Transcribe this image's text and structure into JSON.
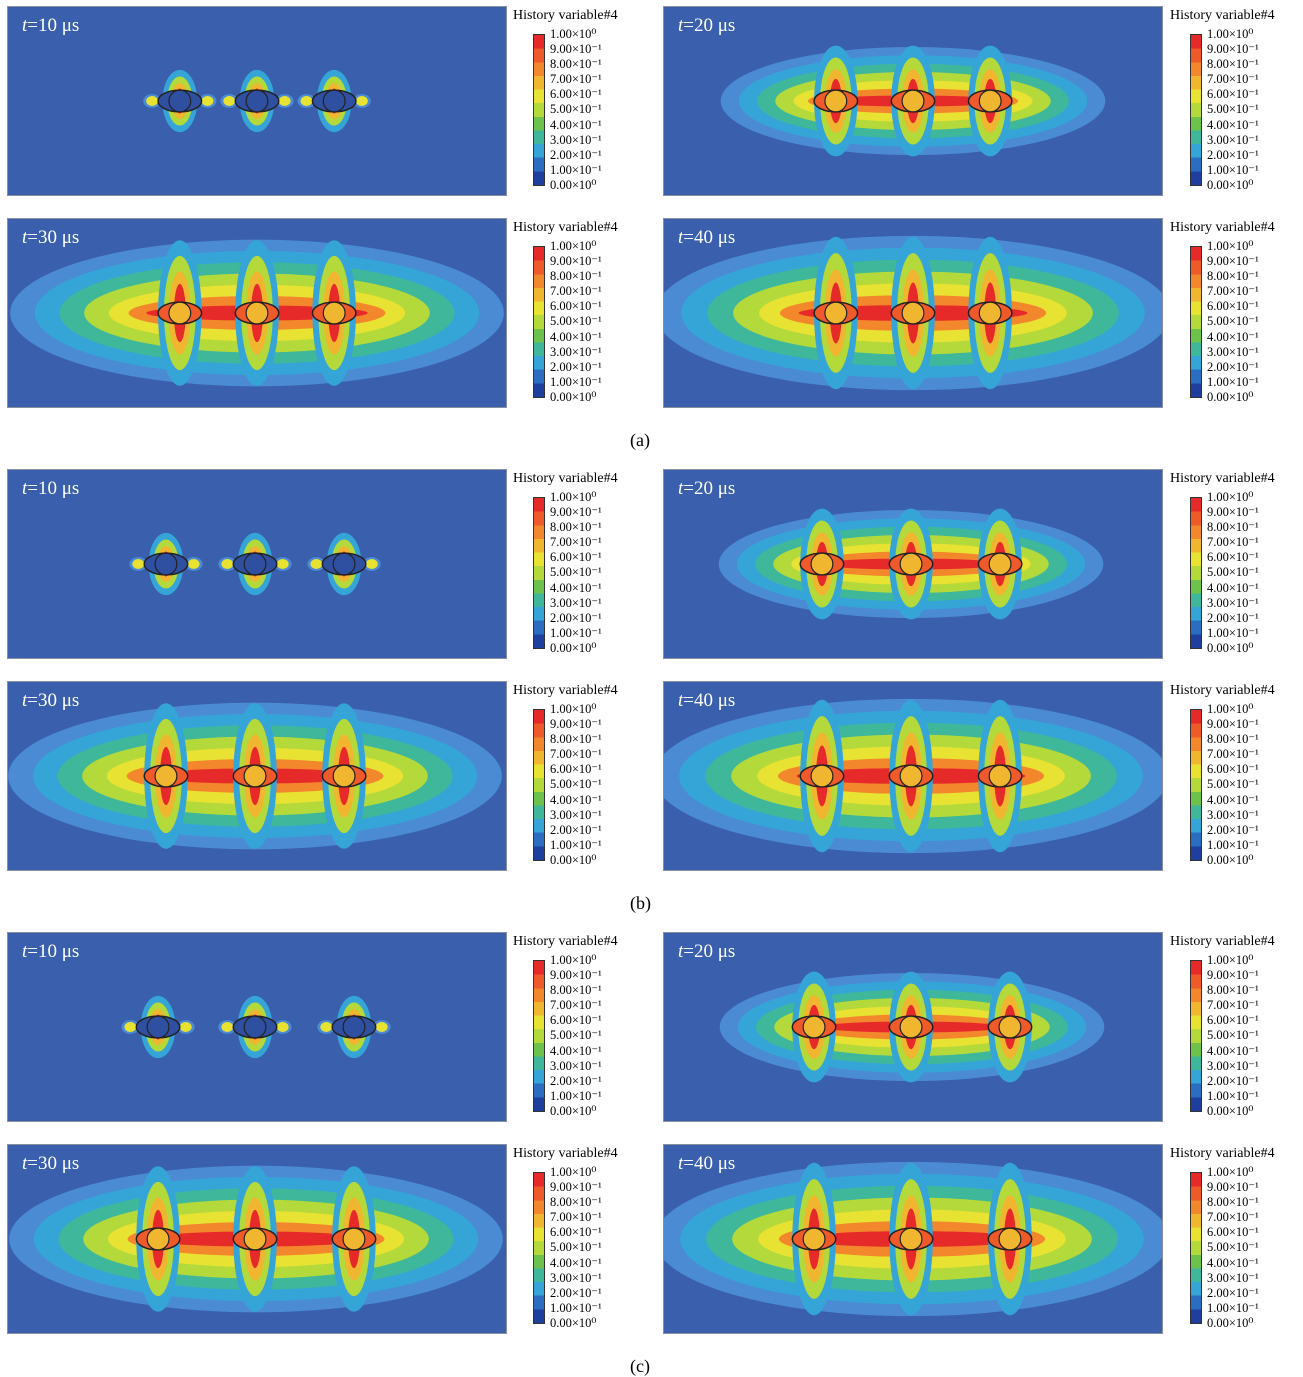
{
  "legend": {
    "title": "History variable#4",
    "ticks": [
      "1.00×10⁰",
      "9.00×10⁻¹",
      "8.00×10⁻¹",
      "7.00×10⁻¹",
      "6.00×10⁻¹",
      "5.00×10⁻¹",
      "4.00×10⁻¹",
      "3.00×10⁻¹",
      "2.00×10⁻¹",
      "1.00×10⁻¹",
      "0.00×10⁰"
    ],
    "colors": [
      "#e62a2a",
      "#ee5a2a",
      "#f3872c",
      "#f1b630",
      "#e8e233",
      "#b3d93b",
      "#6cc24a",
      "#3fb79a",
      "#35a5d8",
      "#2a6dc1",
      "#1f3f9e"
    ]
  },
  "time_prefix": "t",
  "groups": [
    {
      "caption": "(a)",
      "panels": [
        {
          "time": "=10 μs"
        },
        {
          "time": "=20 μs"
        },
        {
          "time": "=30 μs"
        },
        {
          "time": "=40 μs"
        }
      ]
    },
    {
      "caption": "(b)",
      "panels": [
        {
          "time": "=10 μs"
        },
        {
          "time": "=20 μs"
        },
        {
          "time": "=30 μs"
        },
        {
          "time": "=40 μs"
        }
      ]
    },
    {
      "caption": "(c)",
      "panels": [
        {
          "time": "=10 μs"
        },
        {
          "time": "=20 μs"
        },
        {
          "time": "=30 μs"
        },
        {
          "time": "=40 μs"
        }
      ]
    }
  ]
}
